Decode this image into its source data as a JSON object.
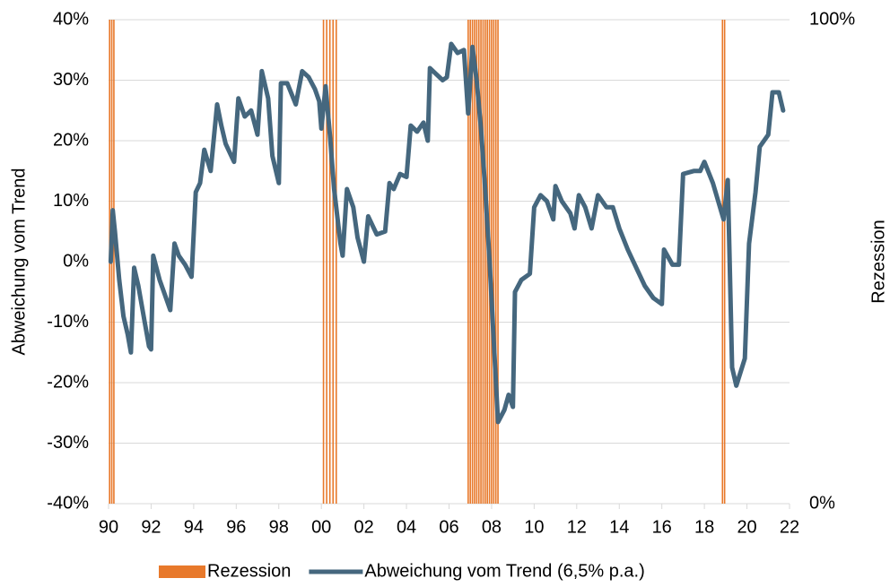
{
  "chart_data": {
    "type": "line",
    "y_label": "Abweichung vom Trend",
    "y2_label": "Rezession",
    "xlim": [
      1990,
      2022
    ],
    "xticks": [
      {
        "value": 1990,
        "label": "90"
      },
      {
        "value": 1992,
        "label": "92"
      },
      {
        "value": 1994,
        "label": "94"
      },
      {
        "value": 1996,
        "label": "96"
      },
      {
        "value": 1998,
        "label": "98"
      },
      {
        "value": 2000,
        "label": "00"
      },
      {
        "value": 2002,
        "label": "02"
      },
      {
        "value": 2004,
        "label": "04"
      },
      {
        "value": 2006,
        "label": "06"
      },
      {
        "value": 2008,
        "label": "08"
      },
      {
        "value": 2010,
        "label": "10"
      },
      {
        "value": 2012,
        "label": "12"
      },
      {
        "value": 2014,
        "label": "14"
      },
      {
        "value": 2016,
        "label": "16"
      },
      {
        "value": 2018,
        "label": "18"
      },
      {
        "value": 2020,
        "label": "20"
      },
      {
        "value": 2022,
        "label": "22"
      }
    ],
    "ylim": [
      -40,
      40
    ],
    "yticks": [
      {
        "value": -40,
        "label": "-40%"
      },
      {
        "value": -30,
        "label": "-30%"
      },
      {
        "value": -20,
        "label": "-20%"
      },
      {
        "value": -10,
        "label": "-10%"
      },
      {
        "value": 0,
        "label": "0%"
      },
      {
        "value": 10,
        "label": "10%"
      },
      {
        "value": 20,
        "label": "20%"
      },
      {
        "value": 30,
        "label": "30%"
      },
      {
        "value": 40,
        "label": "40%"
      }
    ],
    "y2lim": [
      0,
      100
    ],
    "y2ticks": [
      {
        "value": 0,
        "label": "0%"
      },
      {
        "value": 100,
        "label": "100%"
      }
    ],
    "grid": true,
    "legend": "bottom",
    "series": [
      {
        "name": "Rezession",
        "color": "#e8792b",
        "kind": "bar",
        "axis": "y2",
        "x": [
          1990.05,
          1990.15,
          1990.25,
          2000.1,
          2000.25,
          2000.4,
          2000.55,
          2000.7,
          2006.9,
          2007.0,
          2007.1,
          2007.2,
          2007.3,
          2007.4,
          2007.5,
          2007.6,
          2007.7,
          2007.8,
          2007.9,
          2008.0,
          2008.1,
          2008.2,
          2008.3,
          2018.85,
          2018.95
        ],
        "values": [
          100,
          100,
          100,
          100,
          100,
          100,
          100,
          100,
          100,
          100,
          100,
          100,
          100,
          100,
          100,
          100,
          100,
          100,
          100,
          100,
          100,
          100,
          100,
          100,
          100
        ]
      },
      {
        "name": "Abweichung vom Trend (6,5% p.a.)",
        "color": "#45677e",
        "kind": "line",
        "x": [
          1990.1,
          1990.2,
          1990.3,
          1990.5,
          1990.7,
          1990.9,
          1991.05,
          1991.2,
          1991.4,
          1991.7,
          1991.9,
          1992.0,
          1992.1,
          1992.4,
          1992.6,
          1992.9,
          1993.1,
          1993.3,
          1993.6,
          1993.9,
          1994.1,
          1994.3,
          1994.5,
          1994.8,
          1995.1,
          1995.3,
          1995.5,
          1995.9,
          1996.1,
          1996.4,
          1996.7,
          1997.0,
          1997.2,
          1997.5,
          1997.7,
          1998.0,
          1998.1,
          1998.4,
          1998.8,
          1999.1,
          1999.4,
          1999.7,
          1999.9,
          2000.0,
          2000.2,
          2000.4,
          2000.6,
          2000.9,
          2001.0,
          2001.2,
          2001.5,
          2001.7,
          2002.0,
          2002.2,
          2002.6,
          2003.0,
          2003.2,
          2003.4,
          2003.7,
          2004.0,
          2004.2,
          2004.5,
          2004.8,
          2005.0,
          2005.1,
          2005.4,
          2005.7,
          2005.9,
          2006.1,
          2006.4,
          2006.7,
          2006.9,
          2007.1,
          2007.3,
          2007.5,
          2007.7,
          2007.9,
          2008.1,
          2008.3,
          2008.6,
          2008.8,
          2009.0,
          2009.1,
          2009.4,
          2009.8,
          2010.0,
          2010.3,
          2010.6,
          2010.9,
          2011.0,
          2011.3,
          2011.7,
          2011.9,
          2012.1,
          2012.4,
          2012.7,
          2013.0,
          2013.4,
          2013.7,
          2014.0,
          2014.4,
          2014.8,
          2015.2,
          2015.6,
          2016.0,
          2016.1,
          2016.5,
          2016.8,
          2017.0,
          2017.5,
          2017.8,
          2018.0,
          2018.4,
          2018.9,
          2019.1,
          2019.3,
          2019.5,
          2019.9,
          2020.1,
          2020.4,
          2020.6,
          2021.0,
          2021.2,
          2021.5,
          2021.7
        ],
        "values": [
          0,
          8.5,
          5,
          -3,
          -9,
          -12,
          -15,
          -1,
          -4,
          -10,
          -14,
          -14.5,
          1,
          -3,
          -5,
          -8,
          3,
          1,
          -0.5,
          -2.5,
          11.5,
          13,
          18.5,
          15,
          26,
          22.5,
          19.5,
          16.5,
          27,
          24,
          25,
          21,
          31.5,
          27,
          17.5,
          13,
          29.5,
          29.5,
          26,
          31.5,
          30.5,
          28.5,
          26.5,
          22,
          29,
          21,
          12,
          3,
          1,
          12,
          9,
          4,
          0,
          7.5,
          4.5,
          5,
          13,
          12,
          14.5,
          14,
          22.5,
          21.5,
          23,
          20,
          32,
          31,
          30,
          30.5,
          36,
          34.5,
          35,
          24.5,
          35.5,
          30,
          22,
          12,
          0.3,
          -13,
          -26.5,
          -24.5,
          -22,
          -24,
          -5,
          -3,
          -2,
          9,
          11,
          10,
          7,
          12.5,
          10,
          8,
          5.5,
          11,
          9,
          5.5,
          11,
          9,
          9,
          5.5,
          2,
          -1,
          -4,
          -6,
          -7,
          2,
          -0.5,
          -0.5,
          14.5,
          15,
          15,
          16.5,
          13,
          7,
          13.5,
          -17.5,
          -20.5,
          -16,
          3,
          11.5,
          19,
          21,
          28,
          28,
          25
        ]
      }
    ]
  }
}
